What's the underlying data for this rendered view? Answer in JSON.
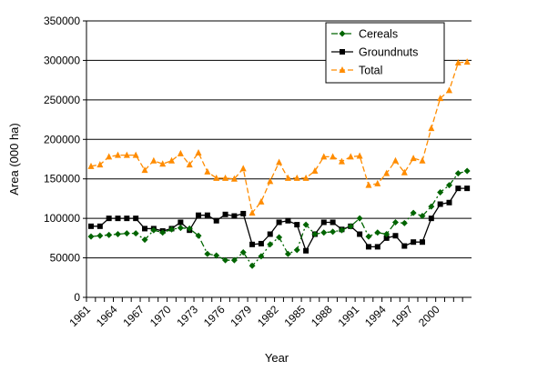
{
  "chart_data": {
    "type": "line",
    "title": "",
    "xlabel": "Year",
    "ylabel": "Area (000 ha)",
    "x": [
      1961,
      1962,
      1963,
      1964,
      1965,
      1966,
      1967,
      1968,
      1969,
      1970,
      1971,
      1972,
      1973,
      1974,
      1975,
      1976,
      1977,
      1978,
      1979,
      1980,
      1981,
      1982,
      1983,
      1984,
      1985,
      1986,
      1987,
      1988,
      1989,
      1990,
      1991,
      1992,
      1993,
      1994,
      1995,
      1996,
      1997,
      1998,
      1999,
      2000,
      2001,
      2002,
      2003
    ],
    "xticks": [
      1961,
      1964,
      1967,
      1970,
      1973,
      1976,
      1979,
      1982,
      1985,
      1988,
      1991,
      1994,
      1997,
      2000
    ],
    "xlim": [
      1961,
      2003
    ],
    "ylim": [
      0,
      350000
    ],
    "yticks": [
      0,
      50000,
      100000,
      150000,
      200000,
      250000,
      300000,
      350000
    ],
    "grid": "horizontal major",
    "legend_position": "top-right",
    "series": [
      {
        "name": "Cereals",
        "color": "#006400",
        "line_style": "dash-dot",
        "marker": "diamond",
        "values": [
          77000,
          78000,
          79000,
          80000,
          81000,
          81000,
          73000,
          85000,
          82000,
          86000,
          88000,
          87000,
          78000,
          55000,
          53000,
          47000,
          47000,
          57000,
          40000,
          52000,
          67000,
          76000,
          55000,
          60000,
          92000,
          80000,
          82000,
          83000,
          85000,
          90000,
          100000,
          77000,
          82000,
          80000,
          95000,
          94000,
          107000,
          103000,
          115000,
          133000,
          142000,
          157000,
          160000
        ]
      },
      {
        "name": "Groundnuts",
        "color": "#000000",
        "line_style": "solid",
        "marker": "square",
        "values": [
          90000,
          90000,
          100000,
          100000,
          100000,
          100000,
          87000,
          87000,
          84000,
          87000,
          95000,
          85000,
          104000,
          104000,
          97000,
          105000,
          103000,
          106000,
          67000,
          68000,
          80000,
          95000,
          97000,
          92000,
          59000,
          80000,
          95000,
          95000,
          86000,
          90000,
          80000,
          64000,
          64000,
          75000,
          78000,
          65000,
          70000,
          70000,
          100000,
          118000,
          120000,
          138000,
          138000
        ]
      },
      {
        "name": "Total",
        "color": "#FF8C00",
        "line_style": "dashed",
        "marker": "triangle",
        "values": [
          166000,
          168000,
          178000,
          180000,
          180000,
          180000,
          161000,
          173000,
          169000,
          173000,
          182000,
          168000,
          183000,
          159000,
          151000,
          151000,
          150000,
          163000,
          107000,
          121000,
          147000,
          171000,
          151000,
          151000,
          151000,
          160000,
          178000,
          178000,
          172000,
          178000,
          179000,
          142000,
          144000,
          157000,
          173000,
          158000,
          176000,
          173000,
          214000,
          252000,
          262000,
          297000,
          298000
        ]
      }
    ]
  }
}
